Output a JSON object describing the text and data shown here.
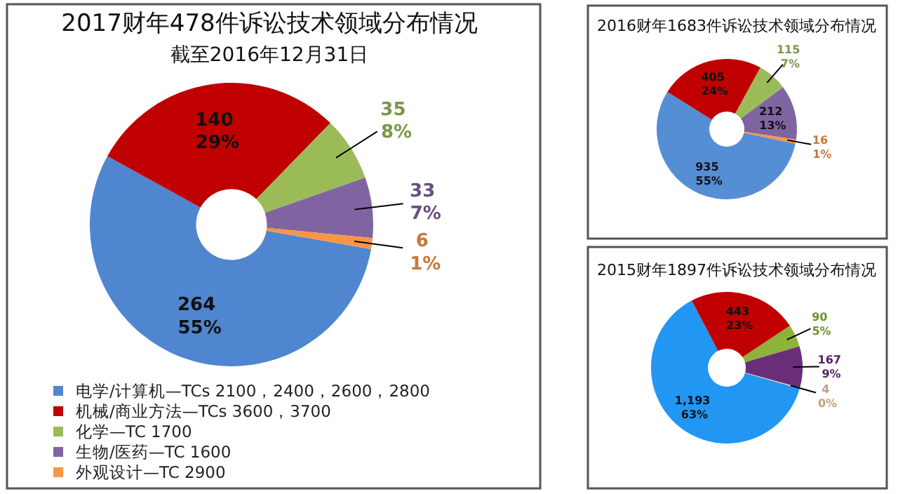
{
  "chart_data": [
    {
      "type": "donut",
      "title": "2017财年478件诉讼技术领域分布情况",
      "subtitle": "截至2016年12月31日",
      "categories": [
        "电学/计算机—TCs 2100，2400，2600，2800",
        "机械/商业方法—TCs 3600，3700",
        "化学—TC 1700",
        "生物/医药—TC 1600",
        "外观设计—TC 2900"
      ],
      "values": [
        264,
        140,
        35,
        33,
        6
      ],
      "colors": [
        "#4f86cf",
        "#c00000",
        "#9bbb59",
        "#8064a2",
        "#f79646"
      ],
      "value_labels": [
        "264 55%",
        "140 29%",
        "35 8%",
        "33 7%",
        "6 1%"
      ],
      "legend": "bottom left"
    },
    {
      "type": "donut",
      "title": "2016财年1683件诉讼技术领域分布情况",
      "categories": [
        null,
        null,
        null,
        null,
        null
      ],
      "values": [
        935,
        405,
        115,
        212,
        16
      ],
      "colors": [
        "#558ed5",
        "#c00000",
        "#9bbb59",
        "#8064a2",
        "#f79646"
      ],
      "value_labels": [
        "935 55%",
        "405 24%",
        "115 7%",
        "212 13%",
        "16 1%"
      ]
    },
    {
      "type": "donut",
      "title": "2015财年1897件诉讼技术领域分布情况",
      "categories": [
        null,
        null,
        null,
        null,
        null
      ],
      "values": [
        1193,
        443,
        90,
        167,
        4
      ],
      "colors": [
        "#2196f3",
        "#c00000",
        "#8db33a",
        "#6a2d7a",
        "#f5c6a0"
      ],
      "value_labels": [
        "1,193 63%",
        "443 23%",
        "90 5%",
        "167 9%",
        "4 0%"
      ]
    }
  ]
}
